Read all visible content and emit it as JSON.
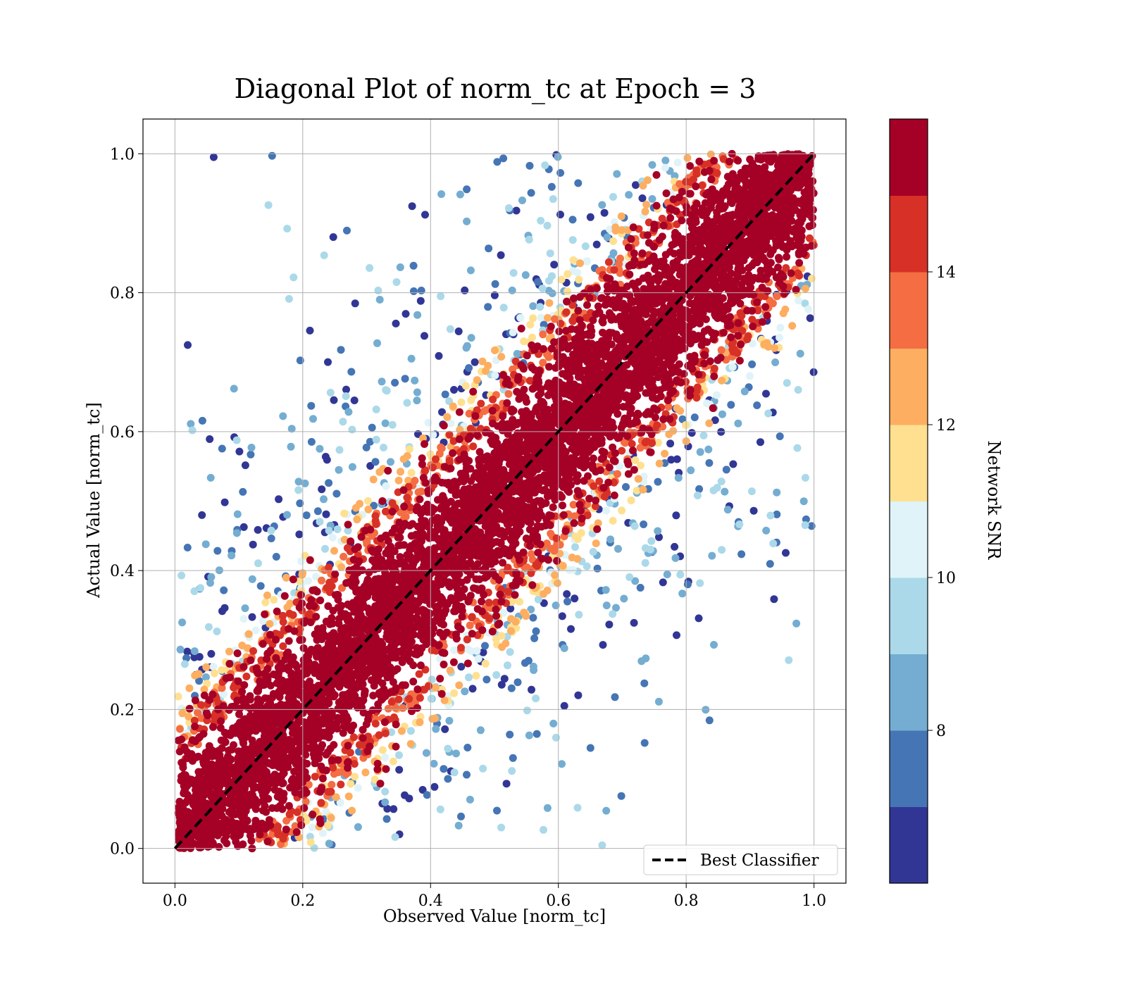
{
  "chart_data": {
    "type": "scatter",
    "title": "Diagonal Plot of norm_tc at Epoch = 3",
    "xlabel": "Observed Value [norm_tc]",
    "ylabel": "Actual Value [norm_tc]",
    "xlim": [
      -0.05,
      1.05
    ],
    "ylim": [
      -0.05,
      1.05
    ],
    "xticks": [
      "0.0",
      "0.2",
      "0.4",
      "0.6",
      "0.8",
      "1.0"
    ],
    "yticks": [
      "0.0",
      "0.2",
      "0.4",
      "0.6",
      "0.8",
      "1.0"
    ],
    "grid": true,
    "reference_line": {
      "label": "Best Classifier",
      "x": [
        0,
        1
      ],
      "y": [
        0,
        1
      ],
      "color": "#000000",
      "style": "dashed"
    },
    "legend": {
      "placement": "lower-right",
      "entries": [
        "Best Classifier"
      ]
    },
    "colorbar": {
      "label": "Network SNR",
      "range": [
        6.0,
        16.0
      ],
      "ticks": [
        "8",
        "10",
        "12",
        "14"
      ],
      "tick_values": [
        8,
        10,
        12,
        14
      ],
      "colors": [
        "#313695",
        "#4575b4",
        "#74add1",
        "#abd9e9",
        "#e0f3f8",
        "#fee090",
        "#fdae61",
        "#f46d43",
        "#d73027",
        "#a50026"
      ]
    },
    "series": [
      {
        "description_of_points": "many points concentrated along the diagonal band (x ≈ y, spread about ±0.12), high SNR points (dark red) near the diagonal, lower SNR points (blue) scattered farther away; all values within [0, 1]",
        "approximate_points": 12000
      }
    ]
  }
}
